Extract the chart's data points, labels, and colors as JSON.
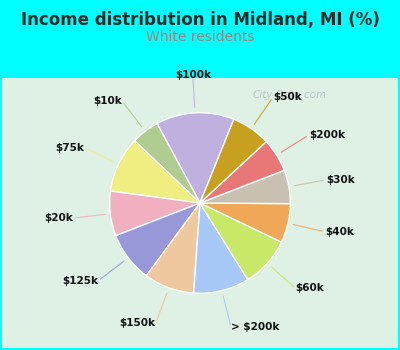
{
  "title": "Income distribution in Midland, MI (%)",
  "subtitle": "White residents",
  "title_color": "#2a2a2a",
  "subtitle_color": "#a08080",
  "background_cyan": "#00ffff",
  "background_inner": "#d8efe0",
  "labels": [
    "$100k",
    "$10k",
    "$75k",
    "$20k",
    "$125k",
    "$150k",
    "> $200k",
    "$60k",
    "$40k",
    "$30k",
    "$200k",
    "$50k"
  ],
  "values": [
    14,
    5,
    10,
    8,
    9,
    9,
    10,
    9,
    7,
    6,
    6,
    7
  ],
  "colors": [
    "#c0b0e0",
    "#b0cc90",
    "#f0ee80",
    "#f0b0c0",
    "#9898d8",
    "#f0c8a0",
    "#a8c8f8",
    "#c8e868",
    "#f0a858",
    "#c8c0b0",
    "#e87878",
    "#c8a020"
  ],
  "wedge_linewidth": 1.0,
  "wedge_edgecolor": "#ffffff",
  "label_fontsize": 7.5,
  "title_fontsize": 12,
  "subtitle_fontsize": 10,
  "startangle": 68
}
